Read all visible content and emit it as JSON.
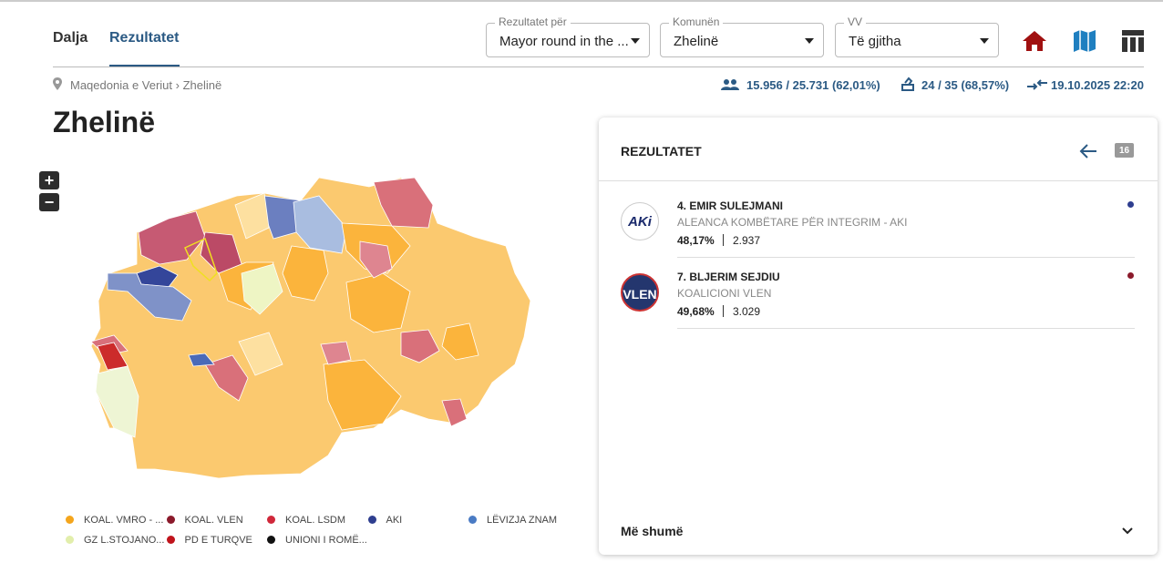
{
  "tabs": [
    "Dalja",
    "Rezultatet"
  ],
  "filters": [
    {
      "label": "Rezultatet për",
      "value": "Mayor round in the ..."
    },
    {
      "label": "Komunën",
      "value": "Zhelinë"
    },
    {
      "label": "VV",
      "value": "Të gjitha"
    }
  ],
  "breadcrumb": [
    "Maqedonia e Veriut",
    "Zhelinë"
  ],
  "stats": {
    "turnout": "15.956 / 25.731 (62,01%)",
    "stations": "24 / 35 (68,57%)",
    "updated": "19.10.2025 22:20"
  },
  "title": "Zhelinë",
  "map": {
    "zoom_in": "+",
    "zoom_out": "−",
    "legend": [
      {
        "name": "KOAL. VMRO - ...",
        "color": "#f4a51c"
      },
      {
        "name": "KOAL. VLEN",
        "color": "#8b1a2b"
      },
      {
        "name": "KOAL. LSDM",
        "color": "#d0283a"
      },
      {
        "name": "AKI",
        "color": "#2e3e8f"
      },
      {
        "name": "LËVIZJA ZNAM",
        "color": "#4a7bc4"
      },
      {
        "name": "GZ L.STOJANO...",
        "color": "#e2eeab"
      },
      {
        "name": "PD E TURQVE",
        "color": "#c0141c"
      },
      {
        "name": "UNIONI I ROMË...",
        "color": "#111111"
      }
    ]
  },
  "results": {
    "title": "REZULTATET",
    "badge": "16",
    "candidates": [
      {
        "logo": "AKi",
        "name": "4. EMIR SULEJMANI",
        "party": "ALEANCA KOMBËTARE PËR INTEGRIM - AKI",
        "percent": "48,17%",
        "votes": "2.937",
        "color": "#2e3e8f"
      },
      {
        "logo": "VLEN",
        "name": "7. BLJERIM SEJDIU",
        "party": "KOALICIONI VLEN",
        "percent": "49,68%",
        "votes": "3.029",
        "color": "#8b1a2b"
      }
    ],
    "more": "Më shumë"
  }
}
